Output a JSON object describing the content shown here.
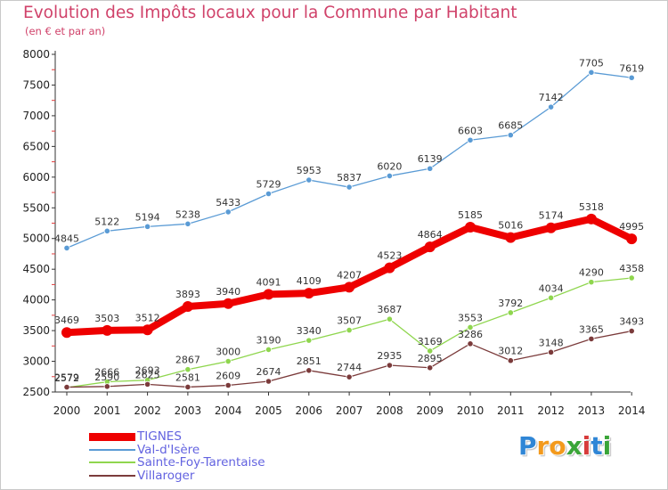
{
  "header": {
    "title": "Evolution des Impôts locaux pour la Commune par Habitant",
    "subtitle": "(en € et par an)"
  },
  "logo": {
    "letters": [
      {
        "char": "P",
        "color": "#2f86d6"
      },
      {
        "char": "r",
        "color": "#f39a1d"
      },
      {
        "char": "o",
        "color": "#f39a1d"
      },
      {
        "char": "x",
        "color": "#3aa538"
      },
      {
        "char": "i",
        "color": "#d73b3b"
      },
      {
        "char": "t",
        "color": "#2f86d6"
      },
      {
        "char": "i",
        "color": "#3aa538"
      }
    ]
  },
  "chart_data": {
    "type": "line",
    "title": "Evolution des Impôts locaux pour la Commune par Habitant",
    "x": [
      "2000",
      "2001",
      "2002",
      "2003",
      "2004",
      "2005",
      "2006",
      "2007",
      "2008",
      "2009",
      "2010",
      "2011",
      "2012",
      "2013",
      "2014"
    ],
    "ylim": [
      2500,
      8000
    ],
    "yticks": [
      "2500",
      "3000",
      "3500",
      "4000",
      "4500",
      "5000",
      "5500",
      "6000",
      "6500",
      "7000",
      "7500",
      "8000"
    ],
    "grid": false,
    "legend_position": "bottom-left",
    "series": [
      {
        "name": "Val-d'Isère",
        "color": "#5a9bd5",
        "weight": "thin",
        "values": [
          4845,
          5122,
          5194,
          5238,
          5433,
          5729,
          5953,
          5837,
          6020,
          6139,
          6603,
          6685,
          7142,
          7705,
          7619
        ],
        "labels": [
          "4845",
          "5122",
          "5194",
          "5238",
          "5433",
          "5729",
          "5953",
          "5837",
          "6020",
          "6139",
          "6603",
          "6685",
          "7142",
          "7705",
          "7619"
        ]
      },
      {
        "name": "Sainte-Foy-Tarentaise",
        "color": "#8fd64e",
        "weight": "thin",
        "values": [
          2572,
          2666,
          2693,
          2867,
          3000,
          3190,
          3340,
          3507,
          3687,
          3169,
          3553,
          3792,
          4034,
          4290,
          4358
        ],
        "labels": [
          "2572",
          "2666",
          "2693",
          "2867",
          "3000",
          "3190",
          "3340",
          "3507",
          "3687",
          "3169",
          "3553",
          "3792",
          "4034",
          "4290",
          "4358"
        ]
      },
      {
        "name": "Villaroger",
        "color": "#7b3b3b",
        "weight": "thin",
        "values": [
          2579,
          2590,
          2625,
          2581,
          2609,
          2674,
          2851,
          2744,
          2935,
          2895,
          3286,
          3012,
          3148,
          3365,
          3493
        ],
        "labels": [
          "2579",
          "2590",
          "2625",
          "2581",
          "2609",
          "2674",
          "2851",
          "2744",
          "2935",
          "2895",
          "3286",
          "3012",
          "3148",
          "3365",
          "3493"
        ]
      },
      {
        "name": "TIGNES",
        "color": "#ee0000",
        "weight": "thick",
        "values": [
          3469,
          3503,
          3512,
          3893,
          3940,
          4091,
          4109,
          4207,
          4523,
          4864,
          5185,
          5016,
          5174,
          5318,
          4995
        ],
        "labels": [
          "3469",
          "3503",
          "3512",
          "3893",
          "3940",
          "4091",
          "4109",
          "4207",
          "4523",
          "4864",
          "5185",
          "5016",
          "5174",
          "5318",
          "4995"
        ]
      }
    ],
    "legend_order": [
      "TIGNES",
      "Val-d'Isère",
      "Sainte-Foy-Tarentaise",
      "Villaroger"
    ]
  }
}
